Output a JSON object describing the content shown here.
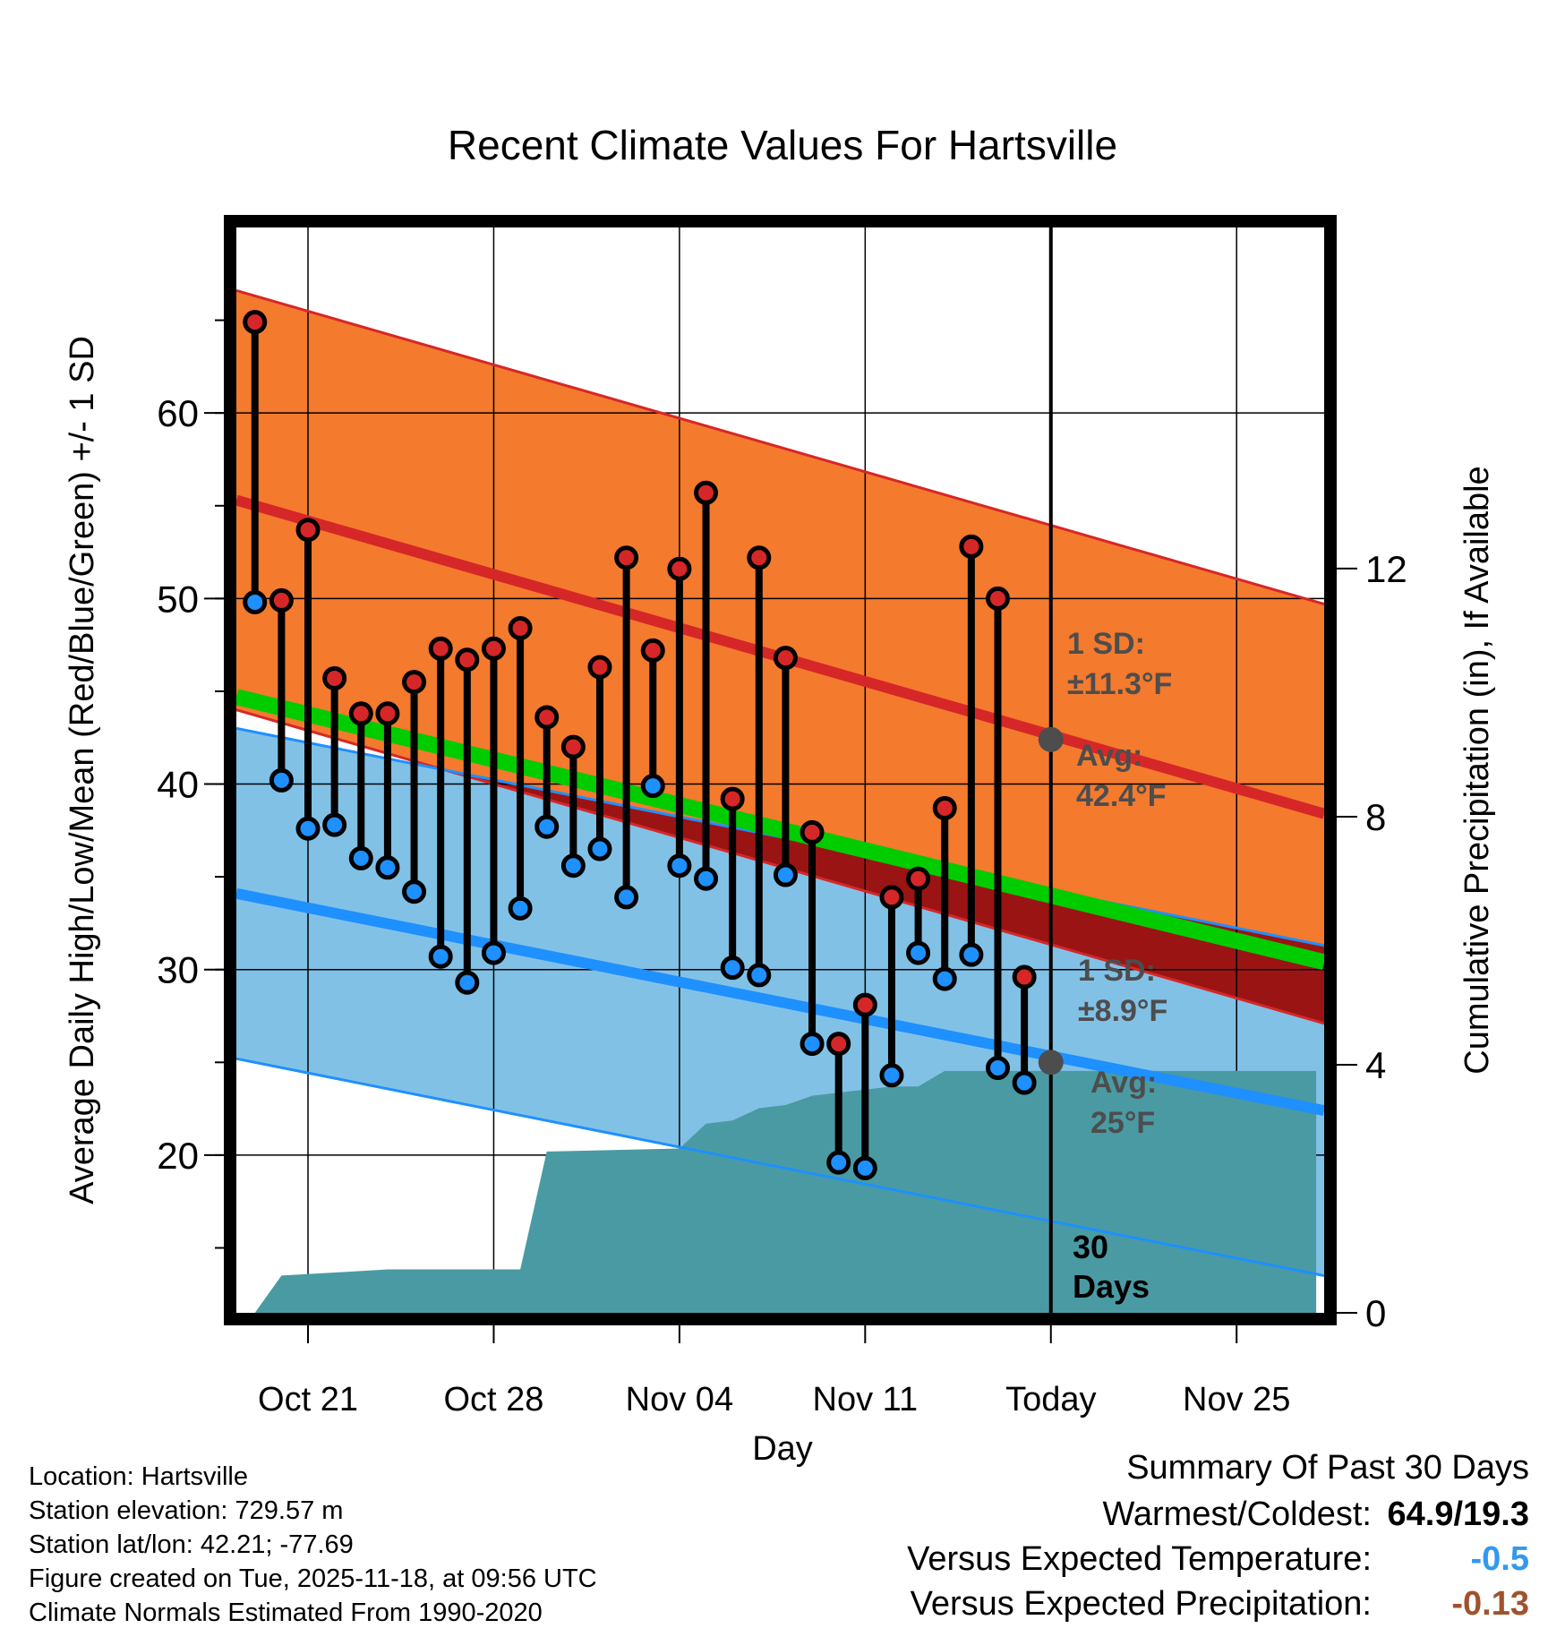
{
  "chart_data": {
    "type": "line",
    "title": "Recent Climate Values For Hartsville",
    "xlabel": "Day",
    "ylabel": "Average Daily High/Low/Mean (Red/Blue/Green) +/- 1 SD",
    "y2label": "Cumulative Precipitation (in), If Available",
    "ylim": [
      11.5,
      70
    ],
    "y2lim": [
      0,
      17.5
    ],
    "xlim": [
      -0.7,
      40.3
    ],
    "yticks": [
      20,
      30,
      40,
      50,
      60
    ],
    "y2ticks": [
      0,
      4,
      8,
      12
    ],
    "xticks": [
      {
        "x": 2,
        "label": "Oct 21"
      },
      {
        "x": 9,
        "label": "Oct 28"
      },
      {
        "x": 16,
        "label": "Nov 04"
      },
      {
        "x": 23,
        "label": "Nov 11"
      },
      {
        "x": 30,
        "label": "Today"
      },
      {
        "x": 37,
        "label": "Nov 25"
      }
    ],
    "x_start_date": "Oct 19",
    "today_x": 30,
    "today_label": "30 Days",
    "normal_high_start": 55.3,
    "normal_high_end": 38.4,
    "high_sd": 11.3,
    "normal_low_start": 34.1,
    "normal_low_end": 22.4,
    "low_sd": 8.9,
    "normal_mean_start": 44.7,
    "normal_mean_end": 30.4,
    "today_avg_high": 42.4,
    "today_avg_low": 25,
    "annotations": {
      "high_sd_label": "1 SD:",
      "high_sd_value": "±11.3°F",
      "high_avg_label": "Avg:",
      "high_avg_value": "42.4°F",
      "low_sd_label": "1 SD:",
      "low_sd_value": "±8.9°F",
      "low_avg_label": "Avg:",
      "low_avg_value": "25°F"
    },
    "series": [
      {
        "name": "Daily High",
        "color": "#d62728",
        "values": [
          64.9,
          49.9,
          53.7,
          45.7,
          43.8,
          43.8,
          45.5,
          47.3,
          46.7,
          47.3,
          48.4,
          43.6,
          42.0,
          46.3,
          52.2,
          47.2,
          51.6,
          55.7,
          39.2,
          52.2,
          46.8,
          37.4,
          26.0,
          28.1,
          33.9,
          34.9,
          38.7,
          52.8,
          50.0,
          29.6
        ]
      },
      {
        "name": "Daily Low",
        "color": "#1e90ff",
        "values": [
          49.8,
          40.2,
          37.6,
          37.8,
          36.0,
          35.5,
          34.2,
          30.7,
          29.3,
          30.9,
          33.3,
          37.7,
          35.6,
          36.5,
          33.9,
          39.9,
          35.6,
          34.9,
          30.1,
          29.7,
          35.1,
          26.0,
          19.6,
          19.3,
          24.3,
          30.9,
          29.5,
          30.8,
          24.7,
          23.9
        ]
      },
      {
        "name": "Cumulative Precipitation (in)",
        "color": "#4a9aa3",
        "x": [
          0,
          1,
          3,
          5,
          10,
          11,
          16,
          17,
          18,
          19,
          20,
          21,
          22,
          23,
          24,
          25,
          26,
          27,
          28,
          29,
          30,
          40
        ],
        "values": [
          0,
          0.6,
          0.65,
          0.7,
          0.7,
          2.6,
          2.65,
          3.05,
          3.1,
          3.3,
          3.35,
          3.5,
          3.55,
          3.6,
          3.65,
          3.65,
          3.9,
          3.9,
          3.9,
          3.9,
          3.9,
          3.9
        ]
      }
    ],
    "colors": {
      "high_band": "#f47a2e",
      "high_line": "#d62728",
      "low_band": "#82c1e6",
      "low_line": "#1e90ff",
      "mean_line": "#00cc00",
      "overlap": "#9b1414",
      "precip": "#4a9aa3",
      "annotation": "#4d4d4d"
    }
  },
  "info": {
    "location": "Location: Hartsville",
    "elevation": "Station elevation: 729.57 m",
    "latlon": "Station lat/lon: 42.21; -77.69",
    "created": "Figure created on Tue, 2025-11-18, at 09:56 UTC",
    "normals": "Climate Normals Estimated From 1990-2020"
  },
  "summary": {
    "title": "Summary Of Past 30 Days",
    "warm_cold_label": "Warmest/Coldest:",
    "warm_cold_value": "64.9/19.3",
    "temp_label": "Versus Expected Temperature:",
    "temp_value": "-0.5",
    "temp_color": "#3399ee",
    "precip_label": "Versus Expected Precipitation:",
    "precip_value": "-0.13",
    "precip_color": "#a0522d"
  }
}
